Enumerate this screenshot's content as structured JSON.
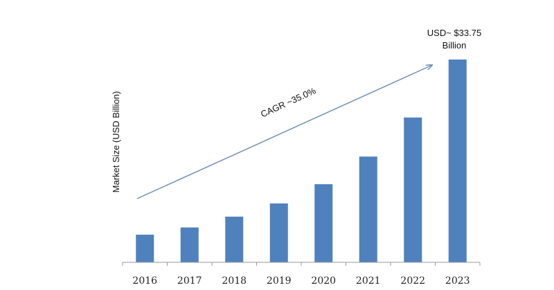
{
  "chart_data": {
    "type": "bar",
    "title": "",
    "xlabel": "",
    "ylabel": "Market Size (USD Billion)",
    "categories": [
      "2016",
      "2017",
      "2018",
      "2019",
      "2020",
      "2021",
      "2022",
      "2023"
    ],
    "values": [
      4.6,
      5.8,
      7.6,
      9.8,
      13.0,
      17.6,
      24.1,
      33.75
    ],
    "ylim": [
      0,
      33.75
    ],
    "grid": false,
    "bar_color": "#4f81bd",
    "annotations": {
      "cagr": "CAGR ~35.0%",
      "last_value_line1": "USD~ $33.75",
      "last_value_line2": "Billion"
    },
    "arrow_color": "#6f8fb8"
  }
}
